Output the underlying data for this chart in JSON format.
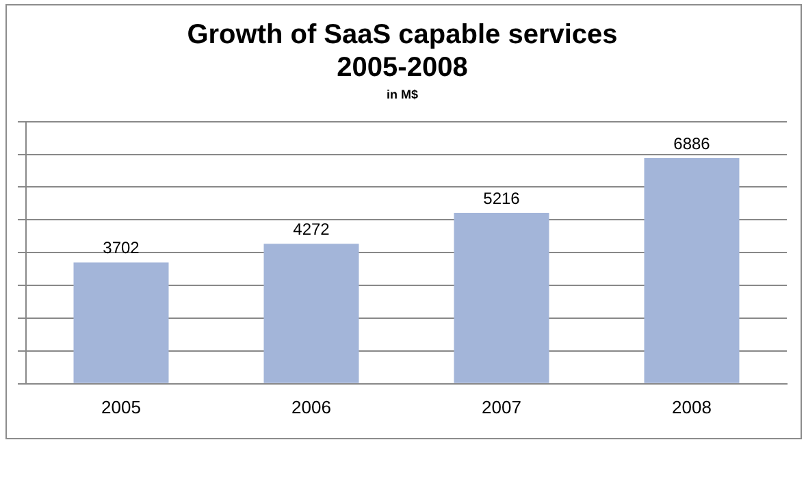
{
  "chart_data": {
    "type": "bar",
    "title": "Growth of SaaS capable services\n2005-2008",
    "subtitle": "in M$",
    "categories": [
      "2005",
      "2006",
      "2007",
      "2008"
    ],
    "values": [
      3702,
      4272,
      5216,
      6886
    ],
    "color": "#a3b5d9",
    "ylim": [
      0,
      8000
    ],
    "yticks": [
      {
        "value": 0,
        "label": null
      },
      {
        "value": 1000,
        "label": null
      },
      {
        "value": 2000,
        "label": null
      },
      {
        "value": 3000,
        "label": null
      },
      {
        "value": 4000,
        "label": null
      },
      {
        "value": 5000,
        "label": null
      },
      {
        "value": 6000,
        "label": null
      },
      {
        "value": 7000,
        "label": null
      },
      {
        "value": 8000,
        "label": null
      }
    ],
    "tick_labels": "x",
    "grid": "y",
    "data_labels": true
  }
}
